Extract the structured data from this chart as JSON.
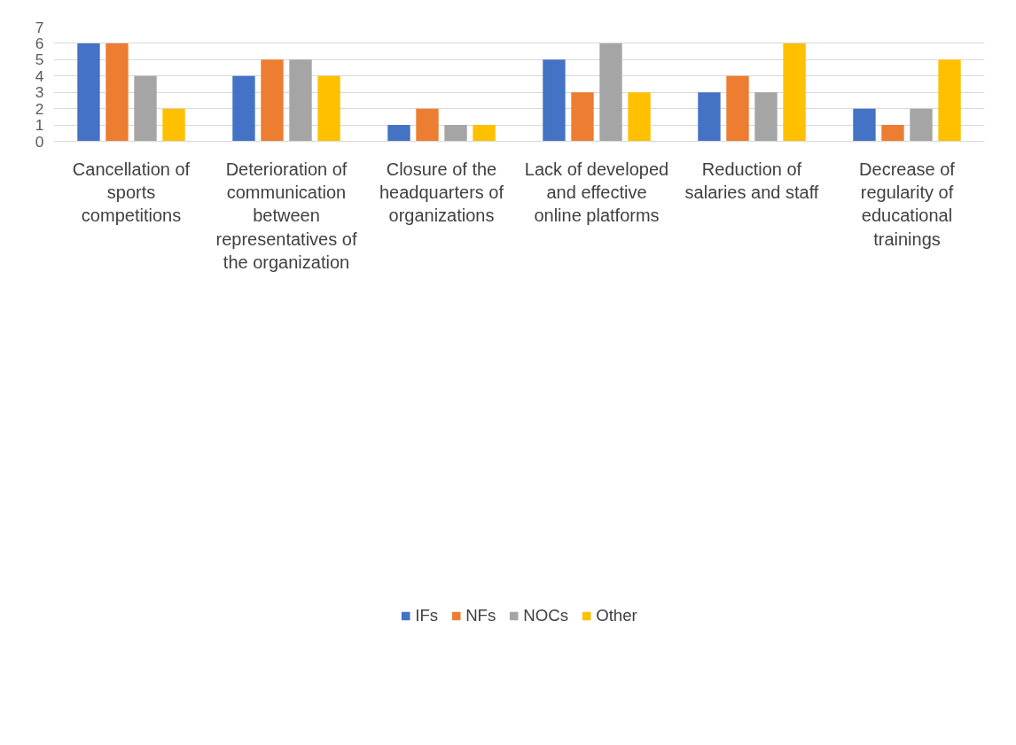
{
  "chart_data": {
    "type": "bar",
    "categories": [
      "Cancellation of sports competitions",
      "Deterioration of communication between representatives of the organization",
      "Closure of the headquarters of organizations",
      "Lack of developed and effective online platforms",
      "Reduction of salaries and staff",
      "Decrease of regularity of educational trainings"
    ],
    "series": [
      {
        "name": "IFs",
        "color": "#4472c4",
        "values": [
          6,
          4,
          1,
          5,
          3,
          2
        ]
      },
      {
        "name": "NFs",
        "color": "#ed7d31",
        "values": [
          6,
          5,
          2,
          3,
          4,
          1
        ]
      },
      {
        "name": "NOCs",
        "color": "#a5a5a5",
        "values": [
          4,
          5,
          1,
          6,
          3,
          2
        ]
      },
      {
        "name": "Other",
        "color": "#ffc000",
        "values": [
          2,
          4,
          1,
          3,
          6,
          5
        ]
      }
    ],
    "ylim": [
      0,
      7
    ],
    "yticks": [
      0,
      1,
      2,
      3,
      4,
      5,
      6,
      7
    ],
    "grid": "y",
    "legend": "bottom"
  }
}
